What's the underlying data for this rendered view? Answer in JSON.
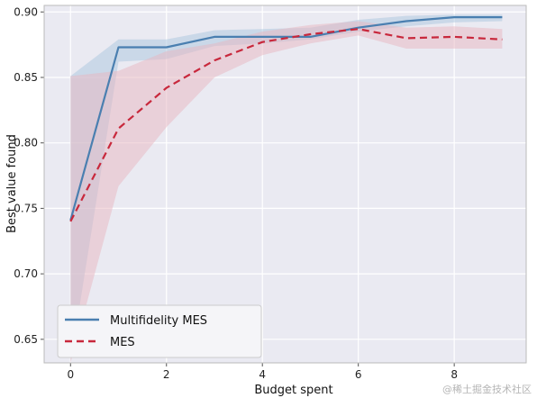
{
  "chart_data": {
    "type": "line",
    "title": "",
    "xlabel": "Budget spent",
    "ylabel": "Best value found",
    "xlim": [
      -0.55,
      9.5
    ],
    "ylim": [
      0.632,
      0.905
    ],
    "xticks": [
      0,
      2,
      4,
      6,
      8
    ],
    "yticks": [
      0.65,
      0.7,
      0.75,
      0.8,
      0.85,
      0.9
    ],
    "xtick_labels": [
      "0",
      "2",
      "4",
      "6",
      "8"
    ],
    "ytick_labels": [
      "0.65",
      "0.70",
      "0.75",
      "0.80",
      "0.85",
      "0.90"
    ],
    "grid": true,
    "legend_position": "lower-left",
    "series": [
      {
        "name": "Multifidelity MES",
        "color": "#4a7fb0",
        "band_color": "#aac6dd",
        "style": "solid",
        "x": [
          0,
          1,
          2,
          3,
          4,
          5,
          6,
          7,
          8,
          9
        ],
        "y": [
          0.741,
          0.873,
          0.873,
          0.881,
          0.881,
          0.881,
          0.888,
          0.893,
          0.896,
          0.896
        ],
        "lower": [
          0.632,
          0.862,
          0.864,
          0.874,
          0.876,
          0.879,
          0.885,
          0.889,
          0.892,
          0.893
        ],
        "upper": [
          0.851,
          0.879,
          0.879,
          0.886,
          0.887,
          0.888,
          0.894,
          0.897,
          0.898,
          0.898
        ]
      },
      {
        "name": "MES",
        "color": "#c8283c",
        "band_color": "#e8b5c0",
        "style": "dashed",
        "x": [
          0,
          1,
          2,
          3,
          4,
          5,
          6,
          7,
          8,
          9
        ],
        "y": [
          0.74,
          0.811,
          0.842,
          0.863,
          0.877,
          0.883,
          0.887,
          0.88,
          0.881,
          0.879
        ],
        "lower": [
          0.632,
          0.767,
          0.812,
          0.85,
          0.867,
          0.876,
          0.882,
          0.872,
          0.872,
          0.872
        ],
        "upper": [
          0.851,
          0.855,
          0.87,
          0.876,
          0.885,
          0.89,
          0.893,
          0.888,
          0.889,
          0.887
        ]
      }
    ]
  },
  "watermark": "@稀土掘金技术社区"
}
